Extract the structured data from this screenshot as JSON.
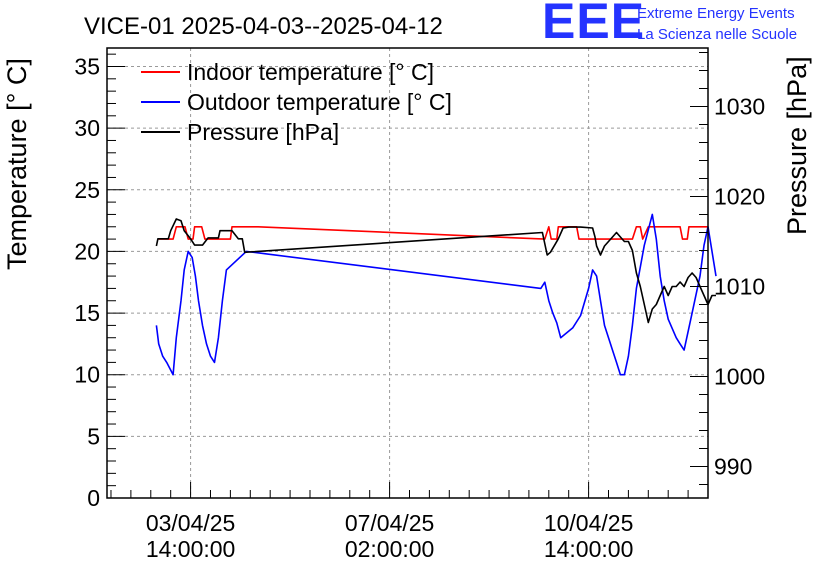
{
  "logo": {
    "mark": "EEE",
    "line1": "Extreme Energy Events",
    "line2": "La Scienza nelle Scuole"
  },
  "chart_data": {
    "type": "line",
    "title": "VICE-01 2025-04-03--2025-04-12",
    "xlabel": "",
    "ylabel": "Temperature [° C]",
    "ylabel_right": "Pressure [hPa]",
    "xlim": [
      -1.05,
      6.5
    ],
    "ylim": [
      0,
      36.5
    ],
    "ylim_right": [
      986.5,
      1036.5
    ],
    "x_unit": "days from 03/04/25 14:00:00",
    "xticks": [
      {
        "value": 0,
        "line1": "03/04/25",
        "line2": "14:00:00"
      },
      {
        "value": 2.5,
        "line1": "07/04/25",
        "line2": "02:00:00"
      },
      {
        "value": 5,
        "line1": "10/04/25",
        "line2": "14:00:00"
      }
    ],
    "yticks": [
      0,
      5,
      10,
      15,
      20,
      25,
      30,
      35
    ],
    "yticks_right": [
      990,
      1000,
      1010,
      1020,
      1030
    ],
    "grid": true,
    "legend": {
      "position": "top-left",
      "entries": [
        {
          "name": "Indoor temperature [° C]",
          "color": "#ff0000"
        },
        {
          "name": "Outdoor temperature [° C]",
          "color": "#0000ff"
        },
        {
          "name": "Pressure [hPa]",
          "color": "#000000"
        }
      ]
    },
    "series": [
      {
        "name": "Indoor temperature [° C]",
        "color": "#ff0000",
        "axis": "left",
        "points": [
          [
            -0.4,
            21
          ],
          [
            -0.22,
            21
          ],
          [
            -0.18,
            22
          ],
          [
            -0.07,
            22
          ],
          [
            -0.03,
            21
          ],
          [
            0.03,
            21
          ],
          [
            0.05,
            22
          ],
          [
            0.14,
            22
          ],
          [
            0.18,
            21
          ],
          [
            0.5,
            21
          ],
          [
            0.52,
            22
          ],
          [
            0.85,
            22
          ],
          [
            4.45,
            21
          ],
          [
            4.5,
            22
          ],
          [
            4.53,
            21
          ],
          [
            4.6,
            21
          ],
          [
            4.62,
            22
          ],
          [
            4.85,
            22
          ],
          [
            4.88,
            21
          ],
          [
            5.55,
            21
          ],
          [
            5.6,
            22
          ],
          [
            5.65,
            22
          ],
          [
            5.68,
            21
          ],
          [
            5.75,
            22
          ],
          [
            6.15,
            22
          ],
          [
            6.18,
            21
          ],
          [
            6.24,
            21
          ],
          [
            6.26,
            22
          ],
          [
            6.5,
            22
          ]
        ]
      },
      {
        "name": "Outdoor temperature [° C]",
        "color": "#0000ff",
        "axis": "left",
        "points": [
          [
            -0.43,
            14
          ],
          [
            -0.4,
            12.5
          ],
          [
            -0.35,
            11.5
          ],
          [
            -0.3,
            11
          ],
          [
            -0.22,
            10
          ],
          [
            -0.18,
            13
          ],
          [
            -0.12,
            16
          ],
          [
            -0.08,
            18.5
          ],
          [
            -0.03,
            20
          ],
          [
            0.02,
            19.5
          ],
          [
            0.06,
            18
          ],
          [
            0.1,
            16
          ],
          [
            0.15,
            14
          ],
          [
            0.2,
            12.5
          ],
          [
            0.25,
            11.5
          ],
          [
            0.3,
            11
          ],
          [
            0.35,
            13
          ],
          [
            0.4,
            16
          ],
          [
            0.45,
            18.5
          ],
          [
            0.7,
            20
          ],
          [
            4.4,
            17
          ],
          [
            4.45,
            17.5
          ],
          [
            4.5,
            16
          ],
          [
            4.55,
            15
          ],
          [
            4.6,
            14.2
          ],
          [
            4.65,
            13
          ],
          [
            4.8,
            13.8
          ],
          [
            4.9,
            14.8
          ],
          [
            5.0,
            17
          ],
          [
            5.05,
            18.5
          ],
          [
            5.1,
            18
          ],
          [
            5.15,
            16
          ],
          [
            5.2,
            14
          ],
          [
            5.25,
            13
          ],
          [
            5.3,
            12
          ],
          [
            5.35,
            11
          ],
          [
            5.4,
            10
          ],
          [
            5.45,
            10
          ],
          [
            5.5,
            11.5
          ],
          [
            5.55,
            14
          ],
          [
            5.6,
            17
          ],
          [
            5.7,
            20.5
          ],
          [
            5.8,
            23
          ],
          [
            5.85,
            21
          ],
          [
            5.9,
            18
          ],
          [
            5.95,
            16
          ],
          [
            6.0,
            14.5
          ],
          [
            6.1,
            13
          ],
          [
            6.15,
            12.5
          ],
          [
            6.2,
            12
          ],
          [
            6.3,
            15
          ],
          [
            6.4,
            18
          ],
          [
            6.45,
            20.5
          ],
          [
            6.5,
            22
          ],
          [
            6.55,
            20
          ],
          [
            6.6,
            18
          ]
        ]
      },
      {
        "name": "Pressure [hPa]",
        "color": "#000000",
        "axis": "right",
        "points": [
          [
            -0.43,
            1014.5
          ],
          [
            -0.41,
            1015.3
          ],
          [
            -0.28,
            1015.3
          ],
          [
            -0.25,
            1016.2
          ],
          [
            -0.18,
            1017.5
          ],
          [
            -0.12,
            1017.3
          ],
          [
            -0.08,
            1016.2
          ],
          [
            0.0,
            1015.3
          ],
          [
            0.05,
            1014.6
          ],
          [
            0.15,
            1014.6
          ],
          [
            0.22,
            1015.4
          ],
          [
            0.35,
            1015.4
          ],
          [
            0.37,
            1016.2
          ],
          [
            0.52,
            1016.2
          ],
          [
            0.6,
            1015.3
          ],
          [
            0.65,
            1015.3
          ],
          [
            0.68,
            1013.8
          ],
          [
            4.42,
            1016
          ],
          [
            4.48,
            1013.5
          ],
          [
            4.52,
            1013.8
          ],
          [
            4.58,
            1014.7
          ],
          [
            4.62,
            1015.3
          ],
          [
            4.68,
            1016.5
          ],
          [
            4.75,
            1016.6
          ],
          [
            4.82,
            1016.6
          ],
          [
            4.9,
            1016.6
          ],
          [
            5.05,
            1016.5
          ],
          [
            5.08,
            1015.5
          ],
          [
            5.1,
            1014.5
          ],
          [
            5.15,
            1013.5
          ],
          [
            5.2,
            1014.5
          ],
          [
            5.25,
            1015
          ],
          [
            5.3,
            1015.5
          ],
          [
            5.35,
            1016
          ],
          [
            5.4,
            1015.5
          ],
          [
            5.45,
            1015
          ],
          [
            5.5,
            1015
          ],
          [
            5.55,
            1014
          ],
          [
            5.6,
            1011.5
          ],
          [
            5.65,
            1010
          ],
          [
            5.7,
            1008
          ],
          [
            5.75,
            1006
          ],
          [
            5.8,
            1007.5
          ],
          [
            5.85,
            1008
          ],
          [
            5.9,
            1009
          ],
          [
            5.95,
            1010
          ],
          [
            6.0,
            1009
          ],
          [
            6.05,
            1010
          ],
          [
            6.1,
            1010
          ],
          [
            6.15,
            1010.5
          ],
          [
            6.2,
            1010
          ],
          [
            6.25,
            1011
          ],
          [
            6.3,
            1011.5
          ],
          [
            6.35,
            1011
          ],
          [
            6.4,
            1010
          ],
          [
            6.45,
            1009
          ],
          [
            6.5,
            1008
          ],
          [
            6.55,
            1009
          ],
          [
            6.6,
            1009
          ]
        ]
      }
    ]
  }
}
